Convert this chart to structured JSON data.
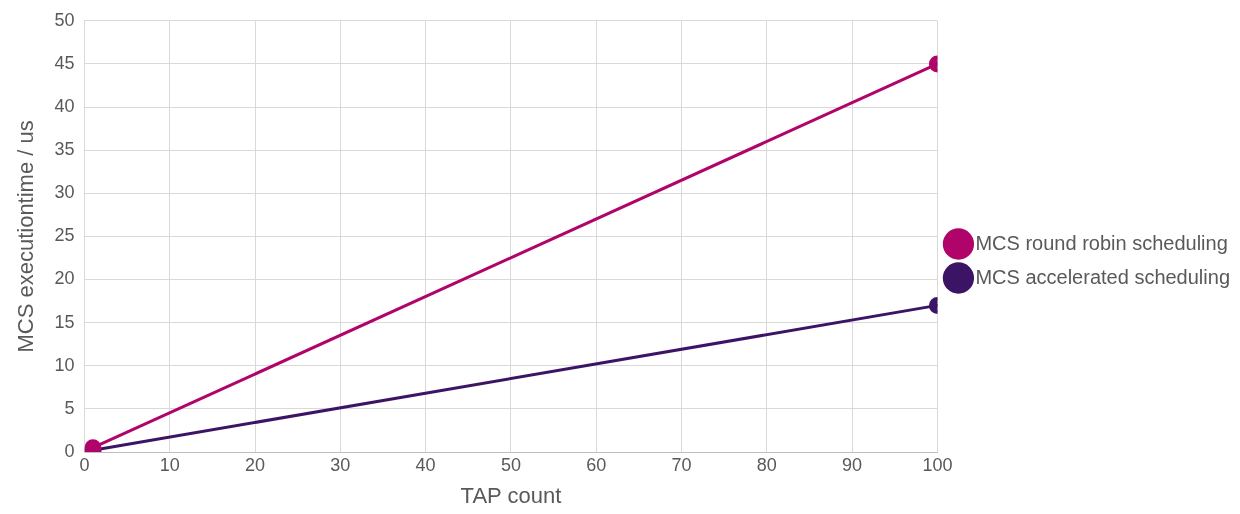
{
  "chart_data": {
    "type": "line",
    "xlabel": "TAP count",
    "ylabel": "MCS executiontime / us",
    "x": [
      1,
      100
    ],
    "series": [
      {
        "name": "MCS round robin scheduling",
        "color": "#b0046b",
        "values": [
          0.5,
          45
        ]
      },
      {
        "name": "MCS accelerated scheduling",
        "color": "#3c1466",
        "values": [
          0.2,
          17
        ]
      }
    ],
    "xlim": [
      0,
      100
    ],
    "xticks": [
      0,
      10,
      20,
      30,
      40,
      50,
      60,
      70,
      80,
      90,
      100
    ],
    "ylim": [
      0,
      50
    ],
    "yticks": [
      0,
      5,
      10,
      15,
      20,
      25,
      30,
      35,
      40,
      45,
      50
    ],
    "grid": true,
    "legend": "right",
    "marker": "circle",
    "line_style": "solid"
  }
}
